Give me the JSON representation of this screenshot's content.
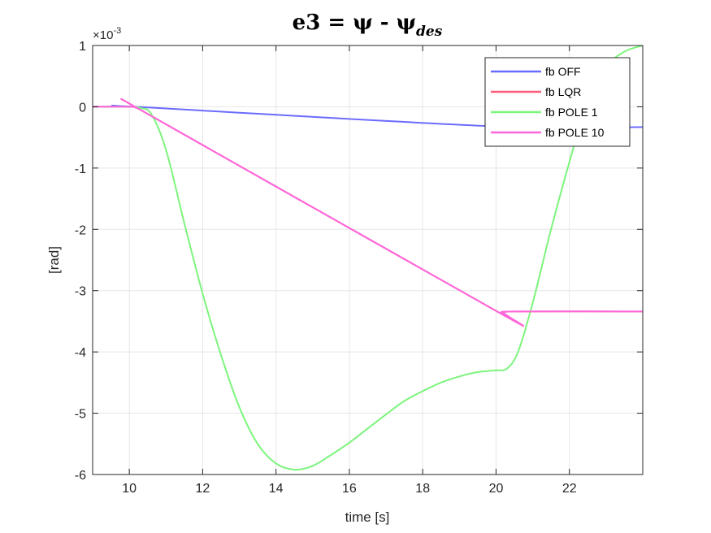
{
  "chart_data": {
    "type": "line",
    "title": "e3 = ψ - ψ",
    "title_subscript": "des",
    "xlabel": "time [s]",
    "ylabel": "[rad]",
    "y_exponent_base": "×10",
    "y_exponent": "-3",
    "xlim": [
      9,
      24
    ],
    "ylim": [
      -6,
      1
    ],
    "xticks": [
      10,
      12,
      14,
      16,
      18,
      20,
      22
    ],
    "xtick_labels": [
      "10",
      "12",
      "14",
      "16",
      "18",
      "20",
      "22"
    ],
    "yticks": [
      1,
      0,
      -1,
      -2,
      -3,
      -4,
      -5,
      -6
    ],
    "ytick_labels": [
      "1",
      "0",
      "-1",
      "-2",
      "-3",
      "-4",
      "-5",
      "-6"
    ],
    "grid": true,
    "legend_position": "top-right",
    "series": [
      {
        "name": "fb OFF",
        "color": "#6b6bff",
        "points": [
          [
            9,
            0
          ],
          [
            10,
            0
          ],
          [
            10.3,
            -0.005
          ],
          [
            20,
            -0.32
          ],
          [
            24,
            -0.33
          ]
        ]
      },
      {
        "name": "fb LQR",
        "color": "#ff5a7a",
        "points": [
          [
            9,
            0
          ],
          [
            10,
            0
          ],
          [
            10.2,
            -0.02
          ],
          [
            10.6,
            -0.15
          ],
          [
            20,
            -3.33
          ],
          [
            20.2,
            -3.36
          ],
          [
            20.5,
            -3.34
          ],
          [
            24,
            -3.34
          ]
        ]
      },
      {
        "name": "fb POLE 1",
        "color": "#7cf57c",
        "points": [
          [
            9,
            0
          ],
          [
            10,
            0
          ],
          [
            10.3,
            -0.02
          ],
          [
            10.6,
            -0.12
          ],
          [
            11,
            -0.7
          ],
          [
            11.5,
            -1.9
          ],
          [
            12,
            -3.05
          ],
          [
            12.5,
            -4.05
          ],
          [
            13,
            -4.9
          ],
          [
            13.5,
            -5.5
          ],
          [
            14,
            -5.82
          ],
          [
            14.5,
            -5.92
          ],
          [
            15,
            -5.86
          ],
          [
            15.5,
            -5.68
          ],
          [
            16,
            -5.48
          ],
          [
            16.5,
            -5.25
          ],
          [
            17,
            -5.02
          ],
          [
            17.5,
            -4.8
          ],
          [
            18,
            -4.64
          ],
          [
            18.5,
            -4.5
          ],
          [
            19,
            -4.4
          ],
          [
            19.5,
            -4.33
          ],
          [
            20,
            -4.3
          ],
          [
            20.3,
            -4.27
          ],
          [
            20.6,
            -4.0
          ],
          [
            21,
            -3.2
          ],
          [
            21.5,
            -2.0
          ],
          [
            22,
            -0.9
          ],
          [
            22.5,
            0.1
          ],
          [
            23,
            0.65
          ],
          [
            23.5,
            0.9
          ],
          [
            24,
            1.0
          ]
        ]
      },
      {
        "name": "fb POLE 10",
        "color": "#ff66dd",
        "points": [
          [
            9,
            0
          ],
          [
            10,
            0
          ],
          [
            10.2,
            -0.02
          ],
          [
            10.6,
            -0.15
          ],
          [
            20,
            -3.33
          ],
          [
            20.2,
            -3.36
          ],
          [
            20.5,
            -3.34
          ],
          [
            24,
            -3.34
          ]
        ]
      }
    ]
  }
}
